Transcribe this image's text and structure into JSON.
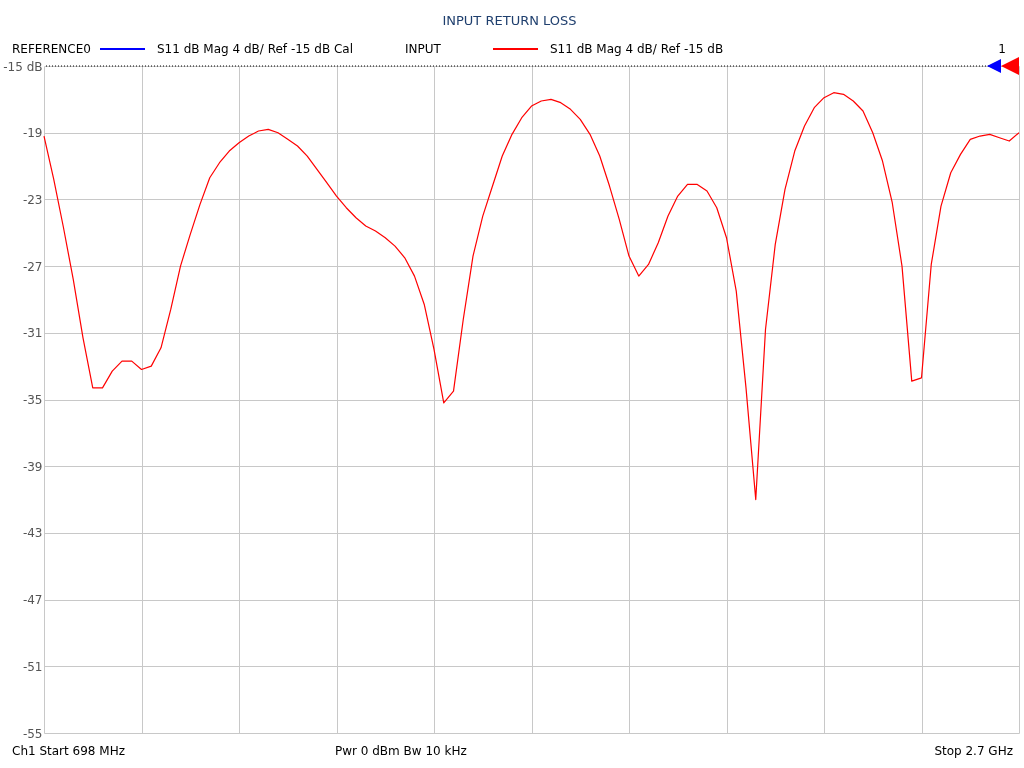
{
  "chart_data": {
    "type": "line",
    "title": "INPUT RETURN LOSS",
    "categories": [
      null,
      null,
      null,
      null,
      null,
      null,
      null,
      null,
      null,
      null,
      null,
      null,
      null,
      null,
      null,
      null,
      null,
      null,
      null,
      null,
      null,
      null,
      null,
      null,
      null,
      null,
      null,
      null,
      null,
      null,
      null,
      null,
      null,
      null,
      null,
      null,
      null,
      null,
      null,
      null,
      null,
      null,
      null,
      null,
      null,
      null,
      null,
      null,
      null,
      null,
      null,
      null,
      null,
      null,
      null,
      null,
      null,
      null,
      null,
      null,
      null,
      null,
      null,
      null,
      null,
      null,
      null,
      null,
      null,
      null,
      null,
      null,
      null,
      null,
      null,
      null,
      null,
      null,
      null,
      null,
      null,
      null,
      null,
      null,
      null,
      null,
      null,
      null,
      null,
      null,
      null,
      null,
      null,
      null,
      null,
      null,
      null,
      null,
      null,
      null,
      null
    ],
    "series": [
      {
        "name": "S11  dB Mag  4 dB/ Ref -15 dB",
        "color": "#ff0000",
        "values": [
          -19.2,
          -21.8,
          -24.7,
          -27.8,
          -31.3,
          -34.3,
          -34.3,
          -33.3,
          -32.7,
          -32.7,
          -33.2,
          -33.0,
          -31.9,
          -29.6,
          -27.0,
          -25.1,
          -23.3,
          -21.7,
          -20.8,
          -20.1,
          -19.6,
          -19.2,
          -18.9,
          -18.8,
          -19.0,
          -19.4,
          -19.8,
          -20.4,
          -21.2,
          -22.0,
          -22.8,
          -23.5,
          -24.1,
          -24.6,
          -24.9,
          -25.3,
          -25.8,
          -26.5,
          -27.6,
          -29.3,
          -32.0,
          -35.2,
          -34.5,
          -30.2,
          -26.4,
          -24.0,
          -22.2,
          -20.4,
          -19.1,
          -18.1,
          -17.4,
          -17.1,
          -17.0,
          -17.2,
          -17.6,
          -18.2,
          -19.1,
          -20.4,
          -22.2,
          -24.2,
          -26.4,
          -27.6,
          -26.9,
          -25.6,
          -24.0,
          -22.8,
          -22.1,
          -22.1,
          -22.5,
          -23.5,
          -25.3,
          -28.5,
          -34.3,
          -41.0,
          -30.8,
          -25.7,
          -22.4,
          -20.1,
          -18.6,
          -17.5,
          -16.9,
          -16.6,
          -16.7,
          -17.1,
          -17.7,
          -19.0,
          -20.7,
          -23.2,
          -27.0,
          -33.9,
          -33.7,
          -26.9,
          -23.4,
          -21.4,
          -20.3,
          -19.4,
          -19.2,
          -19.1,
          -19.3,
          -19.5,
          -19.0
        ]
      }
    ],
    "ylim": [
      -55,
      -15
    ],
    "yticks": [
      {
        "value": -15,
        "label": "-15 dB"
      },
      -19,
      -23,
      -27,
      -31,
      -35,
      -39,
      -43,
      -47,
      -51,
      -55
    ],
    "tick_labels": "y",
    "grid": true,
    "legend": "top",
    "ref_lines": [
      {
        "axis": "y",
        "value": -15,
        "color": "#000000",
        "line_style": "dotted"
      }
    ],
    "annotations": [
      "REFERENCE0",
      "S11  dB Mag  4 dB/ Ref -15 dB  Cal",
      "INPUT",
      "1",
      "Ch1  Start  698 MHz",
      "Pwr  0 dBm  Bw  10 kHz",
      "Stop  2.7 GHz"
    ]
  }
}
